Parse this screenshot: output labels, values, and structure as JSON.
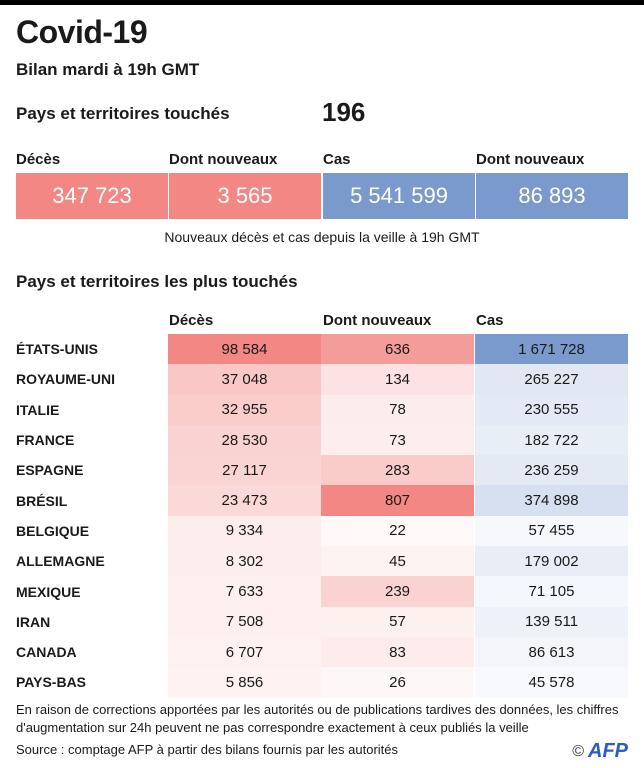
{
  "title": "Covid-19",
  "subtitle": "Bilan mardi à 19h GMT",
  "touched": {
    "label": "Pays et territoires touchés",
    "value": "196"
  },
  "kpis": [
    {
      "label": "Décès",
      "value": "347 723",
      "color": "#f28783"
    },
    {
      "label": "Dont nouveaux",
      "value": "3 565",
      "color": "#f28783"
    },
    {
      "label": "Cas",
      "value": "5 541 599",
      "color": "#7a99cc"
    },
    {
      "label": "Dont nouveaux",
      "value": "86 893",
      "color": "#7a99cc"
    }
  ],
  "kpi_caption": "Nouveaux décès et cas depuis la veille à 19h GMT",
  "table": {
    "title": "Pays et territoires les plus touchés",
    "columns": [
      "Décès",
      "Dont nouveaux",
      "Cas"
    ],
    "rows": [
      {
        "country": "ÉTATS-UNIS",
        "deaths": "98 584",
        "new": "636",
        "cases": "1 671 728"
      },
      {
        "country": "ROYAUME-UNI",
        "deaths": "37 048",
        "new": "134",
        "cases": "265 227"
      },
      {
        "country": "ITALIE",
        "deaths": "32 955",
        "new": "78",
        "cases": "230 555"
      },
      {
        "country": "FRANCE",
        "deaths": "28 530",
        "new": "73",
        "cases": "182 722"
      },
      {
        "country": "ESPAGNE",
        "deaths": "27 117",
        "new": "283",
        "cases": "236 259"
      },
      {
        "country": "BRÉSIL",
        "deaths": "23 473",
        "new": "807",
        "cases": "374 898"
      },
      {
        "country": "BELGIQUE",
        "deaths": "9 334",
        "new": "22",
        "cases": "57 455"
      },
      {
        "country": "ALLEMAGNE",
        "deaths": "8 302",
        "new": "45",
        "cases": "179 002"
      },
      {
        "country": "MEXIQUE",
        "deaths": "7 633",
        "new": "239",
        "cases": "71 105"
      },
      {
        "country": "IRAN",
        "deaths": "7 508",
        "new": "57",
        "cases": "139 511"
      },
      {
        "country": "CANADA",
        "deaths": "6 707",
        "new": "83",
        "cases": "86 613"
      },
      {
        "country": "PAYS-BAS",
        "deaths": "5 856",
        "new": "26",
        "cases": "45 578"
      }
    ]
  },
  "footnote": "En raison de corrections apportées par les autorités ou de publications tardives des données, les chiffres d'augmentation sur 24h peuvent ne pas correspondre exactement à ceux publiés la veille",
  "source": "Source : comptage AFP à partir des bilans fournis par les autorités",
  "credit": {
    "symbol": "©",
    "logo": "AFP"
  },
  "colors": {
    "red": "#f28783",
    "blue": "#7a99cc"
  }
}
